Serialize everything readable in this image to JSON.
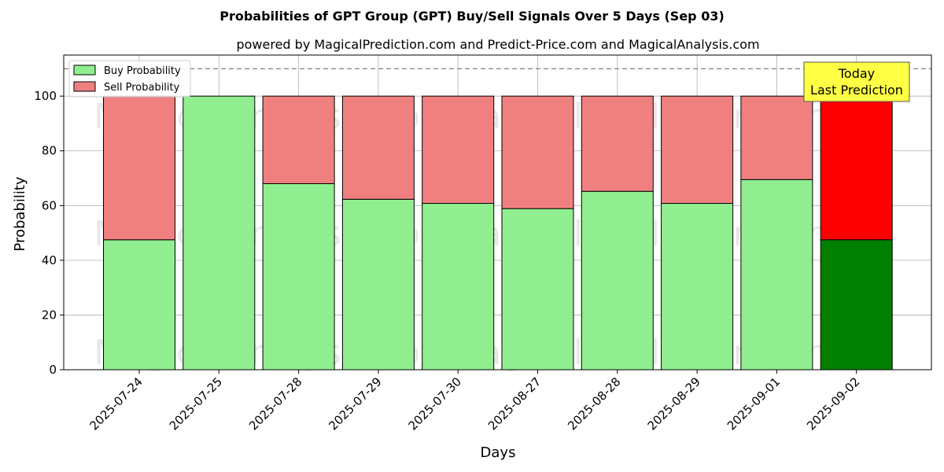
{
  "chart_data": {
    "type": "bar",
    "stacked": true,
    "title": "Probabilities of GPT Group (GPT) Buy/Sell Signals Over 5 Days (Sep 03)",
    "subtitle": "powered by MagicalPrediction.com and Predict-Price.com and MagicalAnalysis.com",
    "xlabel": "Days",
    "ylabel": "Probability",
    "ylim": [
      0,
      115
    ],
    "yticks": [
      0,
      20,
      40,
      60,
      80,
      100
    ],
    "grid": true,
    "reference_line": 110,
    "categories": [
      "2025-07-24",
      "2025-07-25",
      "2025-07-28",
      "2025-07-29",
      "2025-07-30",
      "2025-08-27",
      "2025-08-28",
      "2025-08-29",
      "2025-09-01",
      "2025-09-02"
    ],
    "series": [
      {
        "name": "Buy Probability",
        "color": "#90ee90",
        "highlight_color": "#008000",
        "values": [
          47.5,
          100,
          68,
          62.3,
          60.8,
          58.9,
          65.2,
          60.8,
          69.5,
          47.5
        ]
      },
      {
        "name": "Sell Probability",
        "color": "#f08080",
        "highlight_color": "#ff0000",
        "values": [
          52.5,
          0,
          32,
          37.7,
          39.2,
          41.1,
          34.8,
          39.2,
          30.5,
          52.5
        ]
      }
    ],
    "highlight_index": 9,
    "legend": {
      "position": "top-left",
      "items": [
        "Buy Probability",
        "Sell Probability"
      ]
    },
    "annotation": {
      "lines": [
        "Today",
        "Last Prediction"
      ],
      "background": "#ffff44"
    },
    "watermarks": [
      "MagicalAnalysis.com",
      "MagicalPrediction.com"
    ]
  }
}
